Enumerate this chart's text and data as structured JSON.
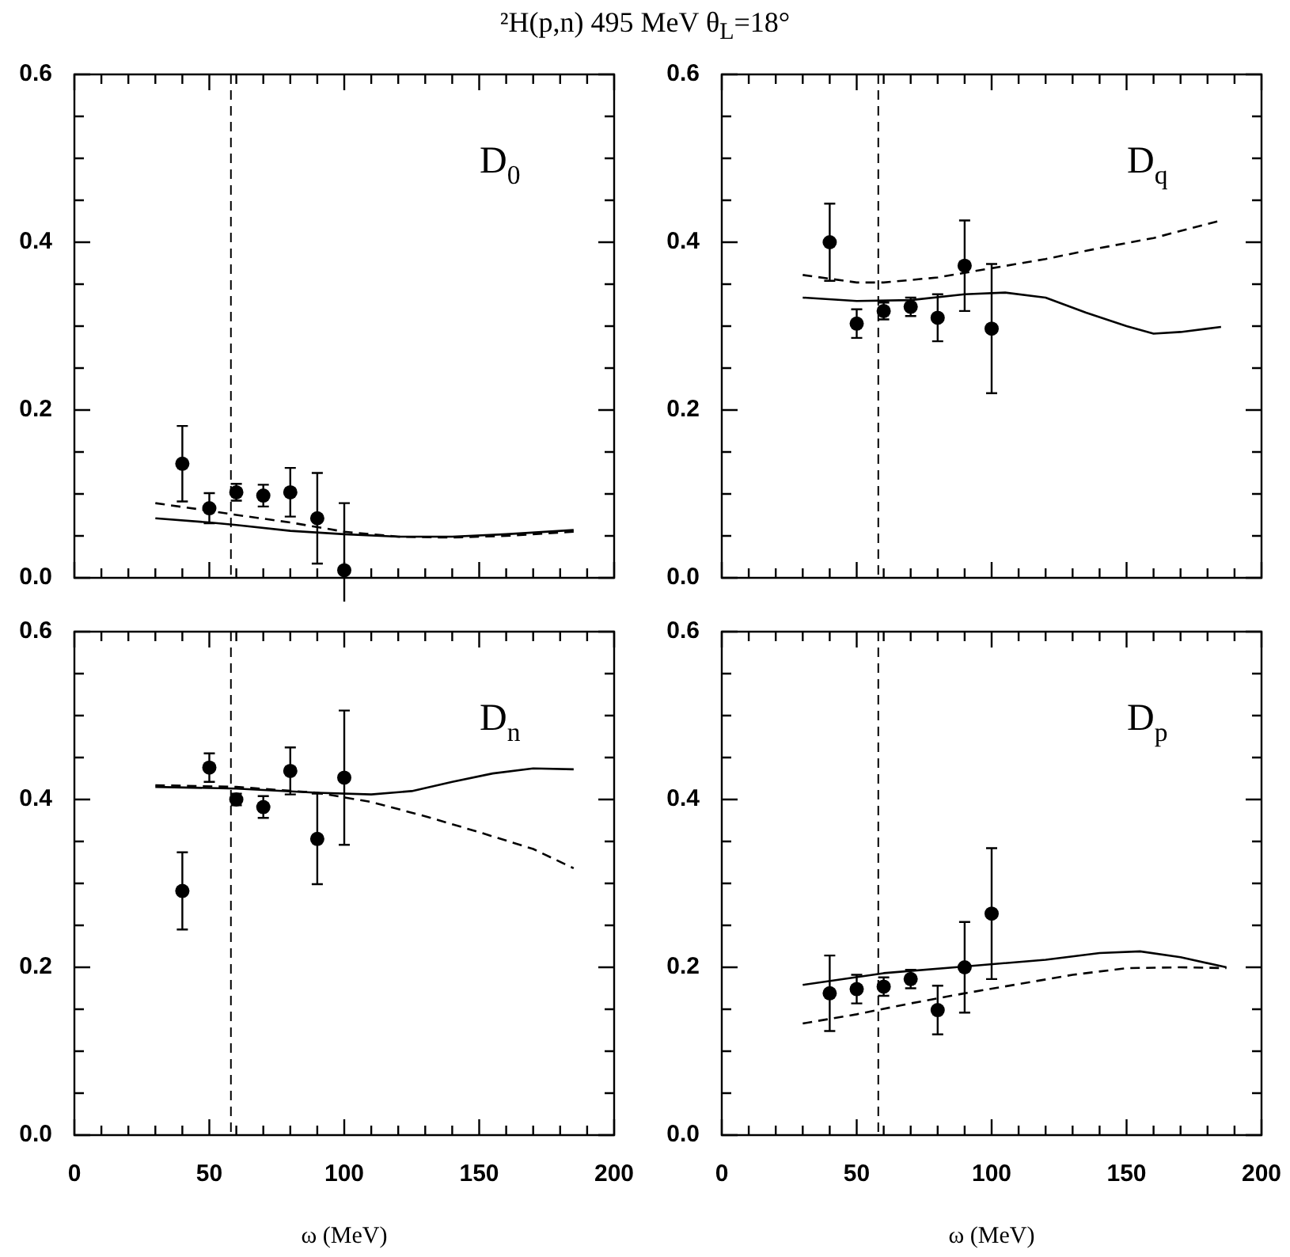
{
  "chart_data": [
    {
      "type": "scatter",
      "title": "²H(p,n)  495 MeV  θ$_{L}$=18°",
      "annotations": [
        "D$_{0}$"
      ],
      "tick_labels": "y",
      "xlim": [
        0,
        200
      ],
      "ylim": [
        0,
        0.6
      ],
      "xticks": [
        0,
        {
          "value": 10,
          "label": null
        },
        {
          "value": 20,
          "label": null
        },
        {
          "value": 30,
          "label": null
        },
        {
          "value": 40,
          "label": null
        },
        50,
        {
          "value": 60,
          "label": null
        },
        {
          "value": 70,
          "label": null
        },
        {
          "value": 80,
          "label": null
        },
        {
          "value": 90,
          "label": null
        },
        100,
        {
          "value": 110,
          "label": null
        },
        {
          "value": 120,
          "label": null
        },
        {
          "value": 130,
          "label": null
        },
        {
          "value": 140,
          "label": null
        },
        150,
        {
          "value": 160,
          "label": null
        },
        {
          "value": 170,
          "label": null
        },
        {
          "value": 180,
          "label": null
        },
        {
          "value": 190,
          "label": null
        },
        200
      ],
      "yticks": [
        {
          "value": 0,
          "label": "0.0"
        },
        {
          "value": 0.05,
          "label": null
        },
        {
          "value": 0.1,
          "label": null
        },
        {
          "value": 0.15,
          "label": null
        },
        {
          "value": 0.2,
          "label": "0.2"
        },
        {
          "value": 0.25,
          "label": null
        },
        {
          "value": 0.3,
          "label": null
        },
        {
          "value": 0.35,
          "label": null
        },
        {
          "value": 0.4,
          "label": "0.4"
        },
        {
          "value": 0.45,
          "label": null
        },
        {
          "value": 0.5,
          "label": null
        },
        {
          "value": 0.55,
          "label": null
        },
        {
          "value": 0.6,
          "label": "0.6"
        }
      ],
      "ref_lines": [
        {
          "axis": "x",
          "value": 58,
          "color": "#000000",
          "line_style": "dashed"
        }
      ],
      "series": [
        {
          "type": "scatter",
          "marker": "circle",
          "color": "#000000",
          "x": [
            40,
            50,
            60,
            70,
            80,
            90,
            100
          ],
          "values": [
            0.136,
            0.083,
            0.102,
            0.098,
            0.102,
            0.071,
            0.009
          ],
          "errors": [
            0.045,
            0.018,
            0.01,
            0.013,
            0.029,
            0.054,
            0.08
          ]
        },
        {
          "type": "line",
          "marker": "none",
          "line_style": "solid",
          "color": "#000000",
          "x": [
            30,
            50,
            60,
            80,
            100,
            120,
            140,
            160,
            185
          ],
          "values": [
            0.071,
            0.066,
            0.063,
            0.056,
            0.052,
            0.049,
            0.049,
            0.052,
            0.057
          ]
        },
        {
          "type": "line",
          "marker": "none",
          "line_style": "dashed",
          "color": "#000000",
          "x": [
            30,
            50,
            60,
            80,
            100,
            120,
            140,
            160,
            185
          ],
          "values": [
            0.089,
            0.08,
            0.075,
            0.066,
            0.055,
            0.049,
            0.048,
            0.05,
            0.055
          ]
        }
      ]
    },
    {
      "type": "scatter",
      "annotations": [
        "D$_{q}$"
      ],
      "tick_labels": "y",
      "xlim": [
        0,
        200
      ],
      "ylim": [
        0,
        0.6
      ],
      "xticks": [
        0,
        {
          "value": 10,
          "label": null
        },
        {
          "value": 20,
          "label": null
        },
        {
          "value": 30,
          "label": null
        },
        {
          "value": 40,
          "label": null
        },
        50,
        {
          "value": 60,
          "label": null
        },
        {
          "value": 70,
          "label": null
        },
        {
          "value": 80,
          "label": null
        },
        {
          "value": 90,
          "label": null
        },
        100,
        {
          "value": 110,
          "label": null
        },
        {
          "value": 120,
          "label": null
        },
        {
          "value": 130,
          "label": null
        },
        {
          "value": 140,
          "label": null
        },
        150,
        {
          "value": 160,
          "label": null
        },
        {
          "value": 170,
          "label": null
        },
        {
          "value": 180,
          "label": null
        },
        {
          "value": 190,
          "label": null
        },
        200
      ],
      "yticks": [
        {
          "value": 0,
          "label": "0.0"
        },
        {
          "value": 0.05,
          "label": null
        },
        {
          "value": 0.1,
          "label": null
        },
        {
          "value": 0.15,
          "label": null
        },
        {
          "value": 0.2,
          "label": "0.2"
        },
        {
          "value": 0.25,
          "label": null
        },
        {
          "value": 0.3,
          "label": null
        },
        {
          "value": 0.35,
          "label": null
        },
        {
          "value": 0.4,
          "label": "0.4"
        },
        {
          "value": 0.45,
          "label": null
        },
        {
          "value": 0.5,
          "label": null
        },
        {
          "value": 0.55,
          "label": null
        },
        {
          "value": 0.6,
          "label": "0.6"
        }
      ],
      "ref_lines": [
        {
          "axis": "x",
          "value": 58,
          "color": "#000000",
          "line_style": "dashed"
        }
      ],
      "series": [
        {
          "type": "scatter",
          "marker": "circle",
          "color": "#000000",
          "x": [
            40,
            50,
            60,
            70,
            80,
            90,
            100
          ],
          "values": [
            0.4,
            0.303,
            0.318,
            0.323,
            0.31,
            0.372,
            0.297
          ],
          "errors": [
            0.046,
            0.017,
            0.01,
            0.011,
            0.028,
            0.054,
            0.077
          ]
        },
        {
          "type": "line",
          "marker": "none",
          "line_style": "solid",
          "color": "#000000",
          "x": [
            30,
            50,
            70,
            90,
            105,
            120,
            135,
            150,
            160,
            170,
            185
          ],
          "values": [
            0.334,
            0.33,
            0.331,
            0.338,
            0.34,
            0.334,
            0.316,
            0.3,
            0.291,
            0.293,
            0.299
          ]
        },
        {
          "type": "line",
          "marker": "none",
          "line_style": "dashed",
          "color": "#000000",
          "x": [
            30,
            50,
            60,
            80,
            100,
            120,
            140,
            160,
            185
          ],
          "values": [
            0.361,
            0.352,
            0.352,
            0.358,
            0.369,
            0.38,
            0.393,
            0.405,
            0.426
          ]
        }
      ]
    },
    {
      "type": "scatter",
      "annotations": [
        "D$_{n}$"
      ],
      "xlabel": "ω (MeV)",
      "xlim": [
        0,
        200
      ],
      "ylim": [
        0,
        0.6
      ],
      "xticks": [
        0,
        {
          "value": 10,
          "label": null
        },
        {
          "value": 20,
          "label": null
        },
        {
          "value": 30,
          "label": null
        },
        {
          "value": 40,
          "label": null
        },
        50,
        {
          "value": 60,
          "label": null
        },
        {
          "value": 70,
          "label": null
        },
        {
          "value": 80,
          "label": null
        },
        {
          "value": 90,
          "label": null
        },
        100,
        {
          "value": 110,
          "label": null
        },
        {
          "value": 120,
          "label": null
        },
        {
          "value": 130,
          "label": null
        },
        {
          "value": 140,
          "label": null
        },
        150,
        {
          "value": 160,
          "label": null
        },
        {
          "value": 170,
          "label": null
        },
        {
          "value": 180,
          "label": null
        },
        {
          "value": 190,
          "label": null
        },
        200
      ],
      "yticks": [
        {
          "value": 0,
          "label": "0.0"
        },
        {
          "value": 0.05,
          "label": null
        },
        {
          "value": 0.1,
          "label": null
        },
        {
          "value": 0.15,
          "label": null
        },
        {
          "value": 0.2,
          "label": "0.2"
        },
        {
          "value": 0.25,
          "label": null
        },
        {
          "value": 0.3,
          "label": null
        },
        {
          "value": 0.35,
          "label": null
        },
        {
          "value": 0.4,
          "label": "0.4"
        },
        {
          "value": 0.45,
          "label": null
        },
        {
          "value": 0.5,
          "label": null
        },
        {
          "value": 0.55,
          "label": null
        },
        {
          "value": 0.6,
          "label": "0.6"
        }
      ],
      "ref_lines": [
        {
          "axis": "x",
          "value": 58,
          "color": "#000000",
          "line_style": "dashed"
        }
      ],
      "series": [
        {
          "type": "scatter",
          "marker": "circle",
          "color": "#000000",
          "x": [
            40,
            50,
            60,
            70,
            80,
            90,
            100
          ],
          "values": [
            0.291,
            0.438,
            0.4,
            0.391,
            0.434,
            0.353,
            0.426
          ],
          "errors": [
            0.046,
            0.017,
            0.007,
            0.013,
            0.028,
            0.054,
            0.08
          ]
        },
        {
          "type": "line",
          "marker": "none",
          "line_style": "solid",
          "color": "#000000",
          "x": [
            30,
            60,
            90,
            110,
            125,
            140,
            155,
            170,
            185
          ],
          "values": [
            0.415,
            0.413,
            0.408,
            0.406,
            0.41,
            0.421,
            0.431,
            0.437,
            0.436
          ]
        },
        {
          "type": "line",
          "marker": "none",
          "line_style": "dashed",
          "color": "#000000",
          "x": [
            30,
            60,
            90,
            110,
            130,
            150,
            170,
            185
          ],
          "values": [
            0.417,
            0.415,
            0.408,
            0.397,
            0.38,
            0.361,
            0.341,
            0.318
          ]
        }
      ]
    },
    {
      "type": "scatter",
      "annotations": [
        "D$_{p}$"
      ],
      "xlabel": "ω (MeV)",
      "xlim": [
        0,
        200
      ],
      "ylim": [
        0,
        0.6
      ],
      "xticks": [
        0,
        {
          "value": 10,
          "label": null
        },
        {
          "value": 20,
          "label": null
        },
        {
          "value": 30,
          "label": null
        },
        {
          "value": 40,
          "label": null
        },
        50,
        {
          "value": 60,
          "label": null
        },
        {
          "value": 70,
          "label": null
        },
        {
          "value": 80,
          "label": null
        },
        {
          "value": 90,
          "label": null
        },
        100,
        {
          "value": 110,
          "label": null
        },
        {
          "value": 120,
          "label": null
        },
        {
          "value": 130,
          "label": null
        },
        {
          "value": 140,
          "label": null
        },
        150,
        {
          "value": 160,
          "label": null
        },
        {
          "value": 170,
          "label": null
        },
        {
          "value": 180,
          "label": null
        },
        {
          "value": 190,
          "label": null
        },
        200
      ],
      "yticks": [
        {
          "value": 0,
          "label": "0.0"
        },
        {
          "value": 0.05,
          "label": null
        },
        {
          "value": 0.1,
          "label": null
        },
        {
          "value": 0.15,
          "label": null
        },
        {
          "value": 0.2,
          "label": "0.2"
        },
        {
          "value": 0.25,
          "label": null
        },
        {
          "value": 0.3,
          "label": null
        },
        {
          "value": 0.35,
          "label": null
        },
        {
          "value": 0.4,
          "label": "0.4"
        },
        {
          "value": 0.45,
          "label": null
        },
        {
          "value": 0.5,
          "label": null
        },
        {
          "value": 0.55,
          "label": null
        },
        {
          "value": 0.6,
          "label": "0.6"
        }
      ],
      "ref_lines": [
        {
          "axis": "x",
          "value": 58,
          "color": "#000000",
          "line_style": "dashed"
        }
      ],
      "series": [
        {
          "type": "scatter",
          "marker": "circle",
          "color": "#000000",
          "x": [
            40,
            50,
            60,
            70,
            80,
            90,
            100
          ],
          "values": [
            0.169,
            0.174,
            0.177,
            0.186,
            0.149,
            0.2,
            0.264
          ],
          "errors": [
            0.045,
            0.017,
            0.011,
            0.011,
            0.029,
            0.054,
            0.078
          ]
        },
        {
          "type": "line",
          "marker": "none",
          "line_style": "solid",
          "color": "#000000",
          "x": [
            30,
            60,
            90,
            120,
            140,
            155,
            170,
            187
          ],
          "values": [
            0.179,
            0.193,
            0.201,
            0.209,
            0.217,
            0.219,
            0.212,
            0.2
          ]
        },
        {
          "type": "line",
          "marker": "none",
          "line_style": "dashed",
          "color": "#000000",
          "x": [
            30,
            50,
            70,
            90,
            110,
            130,
            150,
            170,
            187
          ],
          "values": [
            0.133,
            0.144,
            0.157,
            0.169,
            0.18,
            0.191,
            0.199,
            0.2,
            0.199
          ]
        }
      ]
    }
  ]
}
